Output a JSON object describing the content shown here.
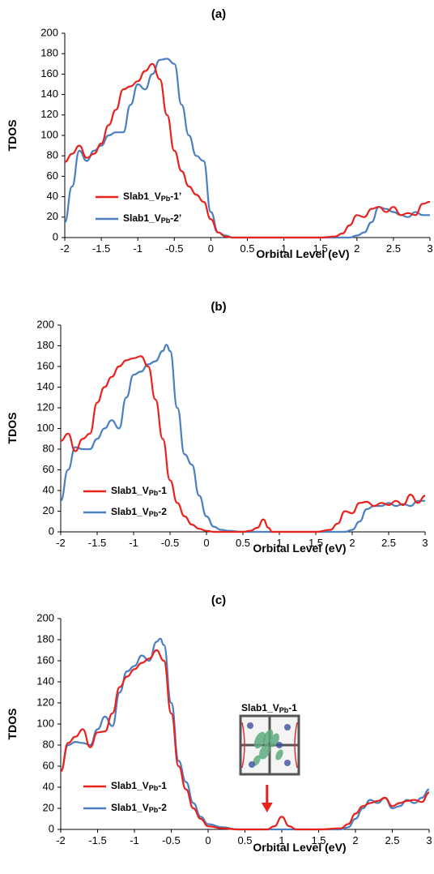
{
  "chart_data": [
    {
      "panel": "(a)",
      "type": "line",
      "xlabel": "Orbital Level (eV)",
      "ylabel": "TDOS",
      "xlim": [
        -2,
        3
      ],
      "ylim": [
        0,
        200
      ],
      "xticks": [
        "-2",
        "-1.5",
        "-1",
        "-0.5",
        "0",
        "0.5",
        "1",
        "1.5",
        "2",
        "2.5",
        "3"
      ],
      "yticks": [
        "0",
        "20",
        "40",
        "60",
        "80",
        "100",
        "120",
        "140",
        "160",
        "180",
        "200"
      ],
      "grid": false,
      "legend_position": "bottom-left",
      "series": [
        {
          "name": "Slab1_VPb-1’",
          "legend": {
            "main": "Slab1_V",
            "sub": "Pb",
            "suffix": "-1’"
          },
          "color": "#e8231e",
          "x": [
            -2.0,
            -1.9,
            -1.8,
            -1.7,
            -1.6,
            -1.5,
            -1.4,
            -1.3,
            -1.2,
            -1.1,
            -1.0,
            -0.9,
            -0.8,
            -0.7,
            -0.6,
            -0.5,
            -0.4,
            -0.3,
            -0.2,
            -0.1,
            0.0,
            0.1,
            0.2,
            0.3,
            0.5,
            1.0,
            1.5,
            1.7,
            1.8,
            1.9,
            2.0,
            2.1,
            2.2,
            2.3,
            2.4,
            2.5,
            2.6,
            2.7,
            2.8,
            2.9,
            3.0
          ],
          "y": [
            74,
            82,
            90,
            78,
            82,
            92,
            110,
            125,
            145,
            148,
            153,
            163,
            170,
            155,
            120,
            85,
            65,
            50,
            42,
            35,
            18,
            5,
            1,
            0,
            0,
            0,
            0,
            1,
            4,
            12,
            22,
            20,
            28,
            30,
            25,
            30,
            22,
            24,
            22,
            33,
            35
          ]
        },
        {
          "name": "Slab1_VPb-2’",
          "legend": {
            "main": "Slab1_V",
            "sub": "Pb",
            "suffix": "-2’"
          },
          "color": "#4a7fc1",
          "x": [
            -2.0,
            -1.9,
            -1.8,
            -1.7,
            -1.6,
            -1.5,
            -1.4,
            -1.3,
            -1.2,
            -1.1,
            -1.0,
            -0.9,
            -0.8,
            -0.7,
            -0.6,
            -0.5,
            -0.4,
            -0.3,
            -0.2,
            -0.1,
            0.0,
            0.1,
            0.2,
            0.3,
            0.5,
            1.0,
            1.5,
            1.8,
            1.9,
            2.0,
            2.1,
            2.2,
            2.3,
            2.4,
            2.5,
            2.6,
            2.7,
            2.8,
            2.9,
            3.0
          ],
          "y": [
            15,
            50,
            85,
            75,
            85,
            90,
            100,
            103,
            103,
            130,
            150,
            145,
            160,
            174,
            175,
            170,
            130,
            100,
            80,
            75,
            25,
            5,
            2,
            0,
            0,
            0,
            0,
            0,
            0,
            2,
            5,
            15,
            30,
            28,
            25,
            22,
            20,
            25,
            22,
            22
          ]
        }
      ]
    },
    {
      "panel": "(b)",
      "type": "line",
      "xlabel": "Orbital Level (eV)",
      "ylabel": "TDOS",
      "xlim": [
        -2,
        3
      ],
      "ylim": [
        0,
        200
      ],
      "xticks": [
        "-2",
        "-1.5",
        "-1",
        "-0.5",
        "0",
        "0.5",
        "1",
        "1.5",
        "2",
        "2.5",
        "3"
      ],
      "yticks": [
        "0",
        "20",
        "40",
        "60",
        "80",
        "100",
        "120",
        "140",
        "160",
        "180",
        "200"
      ],
      "grid": false,
      "legend_position": "bottom-left",
      "series": [
        {
          "name": "Slab1_VPb-1",
          "legend": {
            "main": "Slab1_V",
            "sub": "Pb",
            "suffix": "-1"
          },
          "color": "#e8231e",
          "x": [
            -2.0,
            -1.9,
            -1.8,
            -1.7,
            -1.6,
            -1.5,
            -1.4,
            -1.3,
            -1.2,
            -1.1,
            -1.0,
            -0.9,
            -0.8,
            -0.7,
            -0.6,
            -0.5,
            -0.4,
            -0.3,
            -0.2,
            -0.1,
            0.0,
            0.1,
            0.2,
            0.5,
            0.6,
            0.7,
            0.78,
            0.85,
            0.9,
            1.0,
            1.5,
            1.7,
            1.8,
            1.9,
            2.0,
            2.1,
            2.2,
            2.3,
            2.4,
            2.5,
            2.6,
            2.7,
            2.8,
            2.9,
            3.0
          ],
          "y": [
            88,
            95,
            78,
            90,
            95,
            125,
            140,
            150,
            160,
            166,
            168,
            170,
            160,
            128,
            90,
            50,
            28,
            15,
            7,
            3,
            1,
            0,
            0,
            0,
            1,
            4,
            12,
            4,
            0,
            0,
            0,
            2,
            8,
            20,
            18,
            28,
            29,
            25,
            28,
            26,
            30,
            26,
            36,
            28,
            35
          ]
        },
        {
          "name": "Slab1_VPb-2",
          "legend": {
            "main": "Slab1_V",
            "sub": "Pb",
            "suffix": "-2"
          },
          "color": "#4a7fc1",
          "x": [
            -2.0,
            -1.9,
            -1.8,
            -1.7,
            -1.6,
            -1.5,
            -1.4,
            -1.3,
            -1.2,
            -1.1,
            -1.0,
            -0.9,
            -0.8,
            -0.7,
            -0.6,
            -0.55,
            -0.5,
            -0.4,
            -0.3,
            -0.2,
            -0.1,
            0.0,
            0.1,
            0.2,
            0.3,
            0.5,
            1.0,
            1.5,
            1.8,
            1.9,
            2.0,
            2.1,
            2.2,
            2.3,
            2.4,
            2.5,
            2.6,
            2.7,
            2.8,
            2.9,
            3.0
          ],
          "y": [
            30,
            60,
            82,
            80,
            80,
            90,
            100,
            108,
            100,
            130,
            152,
            155,
            162,
            165,
            175,
            181,
            175,
            120,
            75,
            65,
            35,
            15,
            5,
            2,
            1,
            0,
            0,
            0,
            0,
            0,
            2,
            10,
            22,
            25,
            25,
            28,
            25,
            27,
            25,
            30,
            30
          ]
        }
      ]
    },
    {
      "panel": "(c)",
      "type": "line",
      "xlabel": "Orbital Level (eV)",
      "ylabel": "TDOS",
      "xlim": [
        -2,
        3
      ],
      "ylim": [
        0,
        200
      ],
      "xticks": [
        "-2",
        "-1.5",
        "-1",
        "-0.5",
        "0",
        "0.5",
        "1",
        "1.5",
        "2",
        "2.5",
        "3"
      ],
      "yticks": [
        "0",
        "20",
        "40",
        "60",
        "80",
        "100",
        "120",
        "140",
        "160",
        "180",
        "200"
      ],
      "grid": false,
      "legend_position": "bottom-left",
      "annotation": {
        "inset_label": {
          "main": "Slab1_V",
          "sub": "Pb",
          "suffix": "-1"
        },
        "arrow_x": 0.8,
        "arrow_color": "#e8231e"
      },
      "series": [
        {
          "name": "Slab1_VPb-1",
          "legend": {
            "main": "Slab1_V",
            "sub": "Pb",
            "suffix": "-1"
          },
          "color": "#e8231e",
          "x": [
            -2.0,
            -1.9,
            -1.8,
            -1.7,
            -1.6,
            -1.5,
            -1.4,
            -1.3,
            -1.2,
            -1.1,
            -1.0,
            -0.9,
            -0.8,
            -0.7,
            -0.6,
            -0.5,
            -0.4,
            -0.3,
            -0.2,
            -0.1,
            0.0,
            0.2,
            0.4,
            0.6,
            0.8,
            0.9,
            1.0,
            1.1,
            1.2,
            1.5,
            1.8,
            1.9,
            2.0,
            2.1,
            2.2,
            2.3,
            2.4,
            2.5,
            2.6,
            2.7,
            2.8,
            2.9,
            3.0
          ],
          "y": [
            55,
            82,
            88,
            95,
            78,
            92,
            93,
            110,
            135,
            145,
            152,
            158,
            162,
            170,
            160,
            110,
            60,
            38,
            20,
            10,
            3,
            1,
            0,
            0,
            0,
            3,
            12,
            3,
            0,
            0,
            1,
            5,
            15,
            22,
            25,
            27,
            30,
            22,
            25,
            27,
            28,
            26,
            35
          ]
        },
        {
          "name": "Slab1_VPb-2",
          "legend": {
            "main": "Slab1_V",
            "sub": "Pb",
            "suffix": "-2"
          },
          "color": "#4a7fc1",
          "x": [
            -2.0,
            -1.9,
            -1.8,
            -1.7,
            -1.6,
            -1.5,
            -1.4,
            -1.3,
            -1.2,
            -1.1,
            -1.0,
            -0.9,
            -0.8,
            -0.7,
            -0.65,
            -0.6,
            -0.5,
            -0.4,
            -0.3,
            -0.2,
            -0.1,
            0.0,
            0.2,
            0.4,
            0.6,
            1.0,
            1.5,
            1.8,
            1.9,
            2.0,
            2.1,
            2.2,
            2.3,
            2.4,
            2.5,
            2.6,
            2.7,
            2.8,
            2.9,
            3.0
          ],
          "y": [
            55,
            80,
            83,
            82,
            80,
            95,
            107,
            98,
            130,
            150,
            155,
            165,
            160,
            178,
            181,
            175,
            120,
            65,
            45,
            25,
            12,
            5,
            2,
            0,
            0,
            0,
            0,
            0,
            2,
            10,
            20,
            28,
            25,
            30,
            20,
            22,
            28,
            25,
            30,
            38
          ]
        }
      ]
    }
  ]
}
